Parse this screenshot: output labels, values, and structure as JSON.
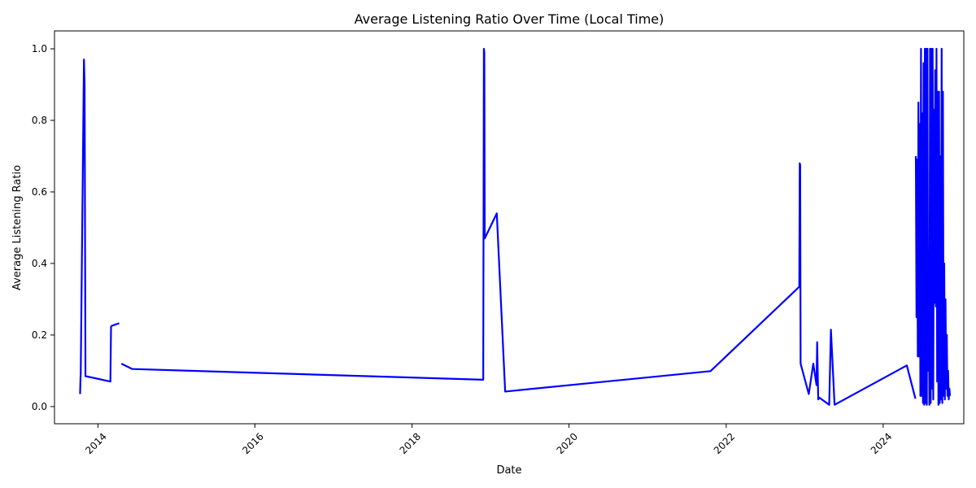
{
  "chart_data": {
    "type": "line",
    "title": "Average Listening Ratio Over Time (Local Time)",
    "xlabel": "Date",
    "ylabel": "Average Listening Ratio",
    "x_ticks": [
      "2014",
      "2016",
      "2018",
      "2020",
      "2022",
      "2024"
    ],
    "y_ticks": [
      "0.0",
      "0.2",
      "0.4",
      "0.6",
      "0.8",
      "1.0"
    ],
    "xlim": [
      "2013-06-13",
      "2025-01-10"
    ],
    "ylim": [
      -0.048,
      1.05
    ],
    "grid": false,
    "legend": "none",
    "colors": {
      "line": "#0000ff",
      "axes": "#000000",
      "background": "#ffffff"
    },
    "series": [
      {
        "segments": [
          {
            "x": [
              "2013-10-10",
              "2013-10-12",
              "2013-10-13",
              "2013-10-28",
              "2013-10-31",
              "2013-11-04",
              "2014-02-28",
              "2014-03-03"
            ],
            "y": [
              0.035,
              0.08,
              0.09,
              0.97,
              0.9,
              0.085,
              0.07,
              0.225
            ]
          },
          {
            "x": [
              "2014-03-03",
              "2014-04-10"
            ],
            "y": [
              0.225,
              0.233
            ]
          },
          {
            "x": [
              "2014-04-20",
              "2014-06-10",
              "2018-11-28",
              "2018-12-01",
              "2018-12-03",
              "2018-12-05",
              "2019-01-30",
              "2019-03-10",
              "2021-10-20",
              "2022-12-07",
              "2022-12-09",
              "2022-12-11",
              "2022-12-13",
              "2023-01-20",
              "2023-02-10",
              "2023-02-25",
              "2023-02-28",
              "2023-03-05",
              "2023-03-10",
              "2023-04-25",
              "2023-05-03",
              "2023-05-20",
              "2024-04-20",
              "2024-05-30"
            ],
            "y": [
              0.12,
              0.105,
              0.075,
              1.0,
              0.99,
              0.47,
              0.54,
              0.042,
              0.099,
              0.335,
              0.68,
              0.675,
              0.12,
              0.035,
              0.12,
              0.06,
              0.18,
              0.02,
              0.025,
              0.005,
              0.215,
              0.005,
              0.115,
              0.022
            ]
          },
          {
            "x": [
              "2024-06-01",
              "2024-06-04",
              "2024-06-07",
              "2024-06-10",
              "2024-06-13",
              "2024-06-16",
              "2024-06-19",
              "2024-06-22",
              "2024-06-25",
              "2024-06-28",
              "2024-07-01",
              "2024-07-04",
              "2024-07-07",
              "2024-07-10",
              "2024-07-13",
              "2024-07-16",
              "2024-07-19",
              "2024-07-22",
              "2024-07-25",
              "2024-07-28",
              "2024-07-31",
              "2024-08-03",
              "2024-08-06",
              "2024-08-09",
              "2024-08-12",
              "2024-08-15",
              "2024-08-18",
              "2024-08-21",
              "2024-08-24",
              "2024-08-27",
              "2024-08-30",
              "2024-09-02",
              "2024-09-05",
              "2024-09-08",
              "2024-09-11",
              "2024-09-14",
              "2024-09-17",
              "2024-09-20",
              "2024-09-23",
              "2024-09-26",
              "2024-09-29",
              "2024-10-02",
              "2024-10-05",
              "2024-10-08",
              "2024-10-11",
              "2024-10-14",
              "2024-10-17",
              "2024-10-20",
              "2024-10-23",
              "2024-10-26",
              "2024-10-29",
              "2024-11-01",
              "2024-11-04",
              "2024-11-07"
            ],
            "y": [
              0.7,
              0.25,
              0.69,
              0.14,
              0.85,
              0.14,
              0.79,
              0.03,
              1.0,
              0.03,
              0.82,
              0.01,
              0.96,
              0.005,
              1.0,
              0.01,
              1.0,
              0.005,
              1.0,
              0.1,
              0.35,
              0.005,
              1.0,
              0.01,
              1.0,
              0.05,
              1.0,
              0.02,
              0.83,
              0.29,
              0.94,
              0.28,
              1.0,
              0.07,
              0.88,
              0.005,
              0.88,
              0.01,
              0.7,
              0.02,
              1.0,
              0.01,
              0.88,
              0.03,
              0.4,
              0.02,
              0.3,
              0.05,
              0.2,
              0.03,
              0.1,
              0.02,
              0.05,
              0.03
            ]
          }
        ]
      }
    ]
  }
}
